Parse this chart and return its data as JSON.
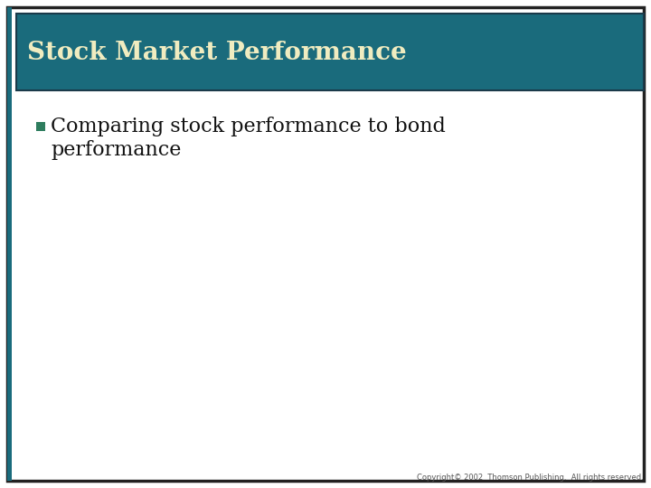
{
  "title": "Stock Market Performance",
  "title_color": "#F0ECC0",
  "title_bg_color": "#1A6B7C",
  "title_border_color": "#1A3A4A",
  "bullet_text_line1": "Comparing stock performance to bond",
  "bullet_text_line2": "performance",
  "bullet_color": "#2E7D5E",
  "body_bg_color": "#FFFFFF",
  "outer_border_color": "#222222",
  "inner_border_color": "#222222",
  "copyright_text": "Copyright© 2002  Thomson Publishing.  All rights reserved.",
  "copyright_color": "#555555",
  "slide_bg_color": "#FFFFFF",
  "left_bar_color": "#1A6B7C",
  "title_fontsize": 20,
  "bullet_fontsize": 16,
  "copyright_fontsize": 6
}
